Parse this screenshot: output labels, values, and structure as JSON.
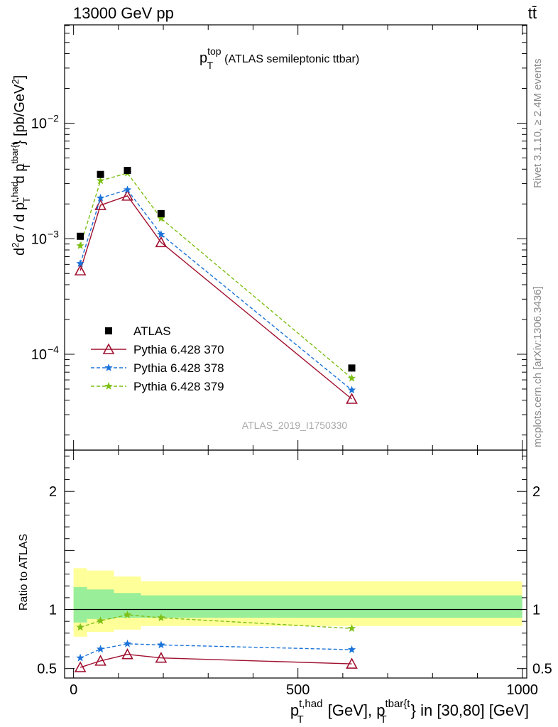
{
  "header": {
    "energy_label": "13000 GeV pp",
    "process_label": "tt̄"
  },
  "side_labels": {
    "rivet": "Rivet 3.1.10, ≥ 2.4M events",
    "mcplots": "mcplots.cern.ch [arXiv:1306.3436]"
  },
  "chart_data": [
    {
      "type": "scatter",
      "panel": "main",
      "title": "p_T^top (ATLAS semileptonic ttbar)",
      "title_main": "p",
      "title_sup": "top",
      "title_sub": "T",
      "title_rest": "(ATLAS semileptonic ttbar)",
      "analysis_label": "ATLAS_2019_I1750330",
      "ylabel": "d²σ / d p_T^{t,had} d p_T^{tbar{t}} [pb/GeV²]",
      "yscale": "log",
      "ylim": [
        1.48e-05,
        0.071
      ],
      "xlim": [
        -20,
        1010
      ],
      "y_ticks": [
        {
          "value": 0.0001,
          "label": "10",
          "exp": "−4"
        },
        {
          "value": 0.001,
          "label": "10",
          "exp": "−3"
        },
        {
          "value": 0.01,
          "label": "10",
          "exp": "−2"
        }
      ],
      "legend_position": "center-left",
      "series": [
        {
          "name": "ATLAS",
          "marker": "square",
          "color": "#000000",
          "line": "none",
          "x": [
            15,
            60,
            120,
            195,
            620
          ],
          "y": [
            0.00105,
            0.0036,
            0.0039,
            0.00165,
            7.6e-05
          ]
        },
        {
          "name": "Pythia 6.428 370",
          "marker": "triangle-open",
          "color": "#a01030",
          "line": "solid",
          "x": [
            15,
            60,
            120,
            195,
            620
          ],
          "y": [
            0.00053,
            0.00195,
            0.00235,
            0.00093,
            4.1e-05
          ]
        },
        {
          "name": "Pythia 6.428 378",
          "marker": "star",
          "color": "#1a73d9",
          "line": "dashed",
          "x": [
            15,
            60,
            120,
            195,
            620
          ],
          "y": [
            0.00061,
            0.00225,
            0.00265,
            0.00109,
            4.9e-05
          ]
        },
        {
          "name": "Pythia 6.428 379",
          "marker": "star",
          "color": "#7dbf16",
          "line": "dashed",
          "x": [
            15,
            60,
            120,
            195,
            620
          ],
          "y": [
            0.00087,
            0.00318,
            0.0037,
            0.0015,
            6.2e-05
          ]
        }
      ]
    },
    {
      "type": "line",
      "panel": "ratio",
      "ylabel": "Ratio to ATLAS",
      "xlabel": "p_T^{t,had} [GeV], p_T^{tbar{t}} in [30,80] [GeV]",
      "xlabel_parts": {
        "p1": "p",
        "sup1": "t,had",
        "sub": "T",
        "mid": " [GeV], p",
        "sup2": "tbar{t",
        "rest": "} in [30,80] [GeV]"
      },
      "ylim": [
        0.42,
        2.35
      ],
      "xlim": [
        -20,
        1010
      ],
      "x_ticks": [
        {
          "value": 0,
          "label": "0"
        },
        {
          "value": 500,
          "label": "500"
        },
        {
          "value": 1000,
          "label": "1000"
        }
      ],
      "y_ticks": [
        {
          "value": 0.5,
          "label": "0.5"
        },
        {
          "value": 1,
          "label": "1"
        },
        {
          "value": 2,
          "label": "2"
        }
      ],
      "bands": [
        {
          "x0": 0,
          "x1": 30,
          "yellow": [
            0.77,
            1.35
          ],
          "green": [
            0.89,
            1.19
          ]
        },
        {
          "x0": 30,
          "x1": 90,
          "yellow": [
            0.81,
            1.33
          ],
          "green": [
            0.92,
            1.17
          ]
        },
        {
          "x0": 90,
          "x1": 150,
          "yellow": [
            0.83,
            1.28
          ],
          "green": [
            0.93,
            1.14
          ]
        },
        {
          "x0": 150,
          "x1": 1000,
          "yellow": [
            0.86,
            1.24
          ],
          "green": [
            0.93,
            1.12
          ]
        }
      ],
      "series": [
        {
          "name": "Pythia 6.428 370",
          "marker": "triangle-open",
          "color": "#a01030",
          "line": "solid",
          "x": [
            15,
            60,
            120,
            195,
            620
          ],
          "y": [
            0.51,
            0.565,
            0.62,
            0.59,
            0.54
          ]
        },
        {
          "name": "Pythia 6.428 378",
          "marker": "star",
          "color": "#1a73d9",
          "line": "dashed",
          "x": [
            15,
            60,
            120,
            195,
            620
          ],
          "y": [
            0.59,
            0.665,
            0.71,
            0.7,
            0.66
          ]
        },
        {
          "name": "Pythia 6.428 379",
          "marker": "star",
          "color": "#7dbf16",
          "line": "dashed",
          "x": [
            15,
            60,
            120,
            195,
            620
          ],
          "y": [
            0.85,
            0.905,
            0.955,
            0.93,
            0.84
          ]
        }
      ]
    }
  ]
}
